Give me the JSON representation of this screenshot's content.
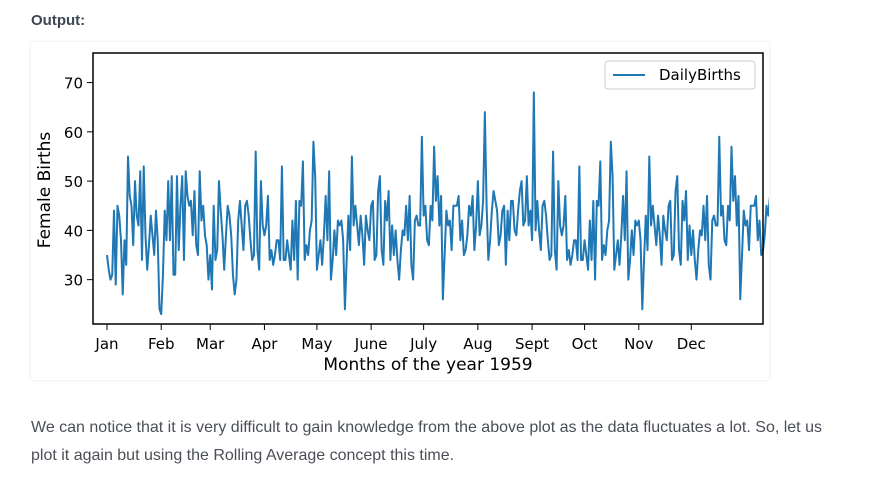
{
  "heading": "Output:",
  "paragraph": "We can notice that it is very difficult to gain knowledge from the above plot as the data fluctuates a lot. So, let us plot it again but using the Rolling Average concept this time.",
  "chart_data": {
    "type": "line",
    "title": "",
    "xlabel": "Months of the year 1959",
    "ylabel": "Female Births",
    "ylim": [
      21,
      76
    ],
    "xlim": [
      -8,
      375
    ],
    "y_ticks": [
      30,
      40,
      50,
      60,
      70
    ],
    "x_ticks": [
      {
        "label": "Jan",
        "day": 0
      },
      {
        "label": "Feb",
        "day": 31
      },
      {
        "label": "Mar",
        "day": 59
      },
      {
        "label": "Apr",
        "day": 90
      },
      {
        "label": "May",
        "day": 120
      },
      {
        "label": "June",
        "day": 151
      },
      {
        "label": "July",
        "day": 181
      },
      {
        "label": "Aug",
        "day": 212
      },
      {
        "label": "Sept",
        "day": 243
      },
      {
        "label": "Oct",
        "day": 273
      },
      {
        "label": "Nov",
        "day": 304
      },
      {
        "label": "Dec",
        "day": 334
      }
    ],
    "grid": false,
    "legend_position": "top-right",
    "series": [
      {
        "name": "DailyBirths",
        "color": "#1f77b4",
        "values": [
          35,
          32,
          30,
          31,
          44,
          29,
          45,
          43,
          38,
          27,
          38,
          33,
          55,
          47,
          45,
          37,
          50,
          43,
          41,
          52,
          34,
          53,
          39,
          32,
          37,
          43,
          39,
          35,
          44,
          38,
          24,
          23,
          31,
          44,
          38,
          50,
          38,
          51,
          31,
          31,
          51,
          36,
          45,
          51,
          34,
          52,
          47,
          45,
          46,
          39,
          48,
          37,
          35,
          52,
          42,
          45,
          39,
          37,
          30,
          35,
          28,
          45,
          34,
          36,
          50,
          44,
          39,
          32,
          39,
          45,
          43,
          39,
          31,
          27,
          30,
          42,
          46,
          41,
          36,
          45,
          46,
          43,
          38,
          34,
          35,
          56,
          36,
          32,
          50,
          41,
          39,
          41,
          47,
          34,
          36,
          33,
          35,
          38,
          38,
          34,
          53,
          34,
          34,
          38,
          35,
          32,
          42,
          34,
          46,
          30,
          46,
          45,
          54,
          34,
          37,
          35,
          40,
          42,
          58,
          51,
          32,
          35,
          38,
          33,
          39,
          47,
          38,
          52,
          30,
          34,
          40,
          35,
          42,
          41,
          42,
          38,
          24,
          34,
          43,
          36,
          55,
          41,
          45,
          41,
          37,
          43,
          39,
          33,
          43,
          40,
          38,
          45,
          46,
          34,
          35,
          48,
          51,
          36,
          33,
          46,
          42,
          48,
          34,
          41,
          35,
          40,
          34,
          30,
          36,
          40,
          39,
          45,
          38,
          47,
          33,
          30,
          42,
          43,
          41,
          41,
          59,
          43,
          45,
          38,
          37,
          45,
          42,
          57,
          46,
          51,
          41,
          47,
          26,
          35,
          44,
          41,
          42,
          36,
          45,
          45,
          45,
          47,
          38,
          42,
          35,
          36,
          39,
          45,
          43,
          47,
          36,
          41,
          50,
          39,
          41,
          46,
          64,
          45,
          34,
          38,
          44,
          48,
          46,
          44,
          37,
          39,
          44,
          45,
          33,
          44,
          38,
          46,
          46,
          40,
          39,
          44,
          48,
          50,
          41,
          42,
          51,
          41,
          44,
          38,
          68,
          40,
          46,
          40,
          36,
          45,
          46,
          43,
          38,
          34,
          35,
          56,
          36,
          32,
          50,
          41,
          39,
          41,
          47,
          34,
          36,
          33,
          35,
          38,
          38,
          34,
          53,
          34,
          34,
          38,
          35,
          32,
          42,
          34,
          46,
          30,
          46,
          45,
          54,
          34,
          37,
          35,
          40,
          42,
          58,
          51,
          32,
          35,
          38,
          33,
          39,
          47,
          38,
          52,
          30,
          34,
          40,
          35,
          42,
          41,
          42,
          38,
          24,
          34,
          43,
          36,
          55,
          41,
          45,
          41,
          37,
          43,
          39,
          33,
          43,
          40,
          38,
          45,
          46,
          34,
          35,
          48,
          51,
          36,
          33,
          46,
          42,
          48,
          34,
          41,
          35,
          40,
          34,
          30,
          36,
          40,
          39,
          45,
          38,
          47,
          33,
          30,
          42,
          43,
          41,
          41,
          59,
          43,
          45,
          38,
          37,
          45,
          42,
          57,
          46,
          51,
          41,
          47,
          26,
          35,
          44,
          41,
          42,
          36,
          45,
          45,
          45,
          47,
          38,
          42,
          35,
          36,
          39,
          45,
          43,
          47,
          36,
          41,
          50,
          39,
          41,
          46
        ]
      }
    ]
  }
}
